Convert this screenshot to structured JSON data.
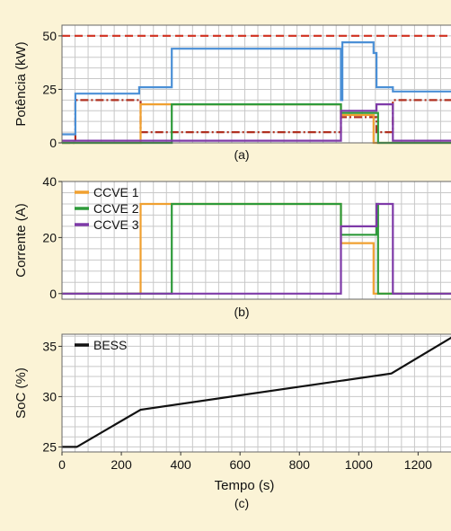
{
  "chart_data": [
    {
      "type": "line",
      "panel_label": "(a)",
      "xlabel": "",
      "ylabel": "Potência (kW)",
      "xlim": [
        0,
        1320
      ],
      "ylim": [
        0,
        55
      ],
      "yticks": [
        0,
        25,
        50
      ],
      "grid": true,
      "series": [
        {
          "color": "#d23a2a",
          "style": "dashed",
          "points": [
            [
              0,
              50
            ],
            [
              1320,
              50
            ]
          ]
        },
        {
          "color": "#b03020",
          "style": "dashdot",
          "points": [
            [
              0,
              0
            ],
            [
              45,
              0
            ],
            [
              45,
              20
            ],
            [
              265,
              20
            ],
            [
              265,
              5
            ],
            [
              940,
              5
            ],
            [
              940,
              12
            ],
            [
              1060,
              12
            ],
            [
              1060,
              5
            ],
            [
              1115,
              5
            ],
            [
              1115,
              20
            ],
            [
              1320,
              20
            ]
          ]
        },
        {
          "color": "#4a8fd6",
          "style": "solid",
          "points": [
            [
              0,
              4
            ],
            [
              45,
              4
            ],
            [
              45,
              23
            ],
            [
              260,
              23
            ],
            [
              260,
              26
            ],
            [
              370,
              26
            ],
            [
              370,
              44
            ],
            [
              930,
              44
            ],
            [
              940,
              44
            ],
            [
              940,
              20
            ],
            [
              945,
              20
            ],
            [
              945,
              47
            ],
            [
              1050,
              47
            ],
            [
              1050,
              42
            ],
            [
              1060,
              42
            ],
            [
              1060,
              26
            ],
            [
              1115,
              26
            ],
            [
              1115,
              24
            ],
            [
              1320,
              24
            ]
          ]
        },
        {
          "color": "#f0a030",
          "style": "solid",
          "points": [
            [
              0,
              0
            ],
            [
              265,
              0
            ],
            [
              265,
              18
            ],
            [
              370,
              18
            ],
            [
              370,
              18
            ],
            [
              940,
              18
            ],
            [
              940,
              13
            ],
            [
              1050,
              13
            ],
            [
              1050,
              0
            ],
            [
              1320,
              0
            ]
          ]
        },
        {
          "color": "#2e9a3a",
          "style": "solid",
          "points": [
            [
              0,
              0
            ],
            [
              370,
              0
            ],
            [
              370,
              18
            ],
            [
              940,
              18
            ],
            [
              940,
              14
            ],
            [
              1065,
              14
            ],
            [
              1065,
              0
            ],
            [
              1320,
              0
            ]
          ]
        },
        {
          "color": "#7e3aa8",
          "style": "solid",
          "points": [
            [
              0,
              1
            ],
            [
              940,
              1
            ],
            [
              940,
              15
            ],
            [
              1060,
              15
            ],
            [
              1060,
              18
            ],
            [
              1115,
              18
            ],
            [
              1115,
              1
            ],
            [
              1320,
              1
            ]
          ]
        }
      ]
    },
    {
      "type": "line",
      "panel_label": "(b)",
      "xlabel": "",
      "ylabel": "Corrente (A)",
      "xlim": [
        0,
        1320
      ],
      "ylim": [
        -2,
        40
      ],
      "yticks": [
        0,
        20,
        40
      ],
      "grid": true,
      "legend": {
        "placement": "top-left",
        "entries": [
          "CCVE 1",
          "CCVE 2",
          "CCVE 3"
        ]
      },
      "series": [
        {
          "name": "CCVE 1",
          "color": "#f0a030",
          "points": [
            [
              0,
              0
            ],
            [
              265,
              0
            ],
            [
              265,
              32
            ],
            [
              370,
              32
            ],
            [
              940,
              32
            ],
            [
              940,
              18
            ],
            [
              1050,
              18
            ],
            [
              1050,
              0
            ],
            [
              1320,
              0
            ]
          ]
        },
        {
          "name": "CCVE 2",
          "color": "#2e9a3a",
          "points": [
            [
              0,
              0
            ],
            [
              370,
              0
            ],
            [
              370,
              32
            ],
            [
              940,
              32
            ],
            [
              940,
              21
            ],
            [
              1060,
              21
            ],
            [
              1060,
              32
            ],
            [
              1065,
              32
            ],
            [
              1065,
              0
            ],
            [
              1320,
              0
            ]
          ]
        },
        {
          "name": "CCVE 3",
          "color": "#7e3aa8",
          "points": [
            [
              0,
              0
            ],
            [
              940,
              0
            ],
            [
              940,
              24
            ],
            [
              1060,
              24
            ],
            [
              1060,
              32
            ],
            [
              1115,
              32
            ],
            [
              1115,
              0
            ],
            [
              1320,
              0
            ]
          ]
        }
      ]
    },
    {
      "type": "line",
      "panel_label": "(c)",
      "xlabel": "Tempo (s)",
      "ylabel": "SoC (%)",
      "xlim": [
        0,
        1320
      ],
      "ylim": [
        24.5,
        36.2
      ],
      "xticks": [
        0,
        200,
        400,
        600,
        800,
        1000,
        1200
      ],
      "yticks": [
        25,
        30,
        35
      ],
      "grid": true,
      "legend": {
        "placement": "top-left",
        "entries": [
          "BESS"
        ]
      },
      "series": [
        {
          "name": "BESS",
          "color": "#111111",
          "points": [
            [
              0,
              25
            ],
            [
              50,
              25
            ],
            [
              265,
              28.7
            ],
            [
              1110,
              32.3
            ],
            [
              1320,
              36
            ]
          ]
        }
      ]
    }
  ]
}
